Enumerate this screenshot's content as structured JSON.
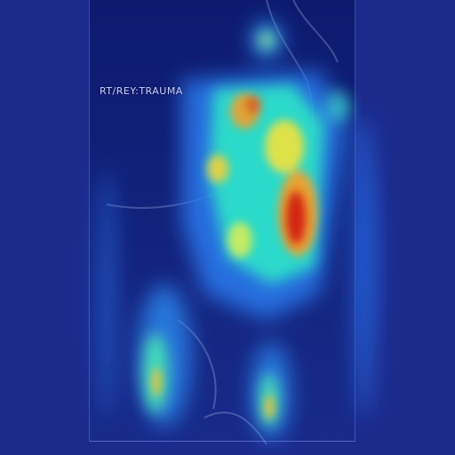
{
  "overlay_label": "RT/REY:TRAUMA",
  "colors": {
    "background": "#1c2a8c",
    "panel": "#0d1a6e",
    "heat_low": "#1f4fe0",
    "heat_mid": "#2ee6c8",
    "heat_high": "#f2e23a",
    "heat_peak": "#d21a10"
  }
}
